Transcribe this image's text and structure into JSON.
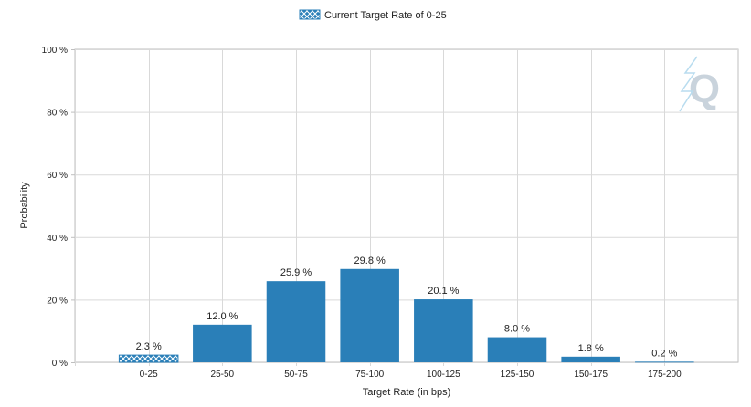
{
  "chart_data": {
    "type": "bar",
    "title": "",
    "xlabel": "Target Rate (in bps)",
    "ylabel": "Probability",
    "categories": [
      "0-25",
      "25-50",
      "50-75",
      "75-100",
      "100-125",
      "125-150",
      "150-175",
      "175-200"
    ],
    "series": [
      {
        "values": [
          2.3,
          12.0,
          25.9,
          29.8,
          20.1,
          8.0,
          1.8,
          0.2
        ],
        "data_labels": [
          "2.3 %",
          "12.0 %",
          "25.9 %",
          "29.8 %",
          "20.1 %",
          "8.0 %",
          "1.8 %",
          "0.2 %"
        ]
      }
    ],
    "highlight": {
      "category_index": 0,
      "pattern": "crosshatch",
      "legend_label": "Current Target Rate of 0-25"
    },
    "ylim": [
      0,
      100
    ],
    "y_ticks": [
      0,
      20,
      40,
      60,
      80,
      100
    ],
    "y_tick_labels": [
      "0 %",
      "20 %",
      "40 %",
      "60 %",
      "80 %",
      "100 %"
    ],
    "grid": true,
    "legend_position": "top-center",
    "colors": {
      "bar": "#2a7fb8",
      "hatch_fg": "#ffffff",
      "grid": "#d9d9d9",
      "axis": "#bfbfbf",
      "text": "#222222",
      "watermark": "#c9d3dc"
    }
  },
  "watermark": {
    "icon": "q-logo-icon"
  }
}
